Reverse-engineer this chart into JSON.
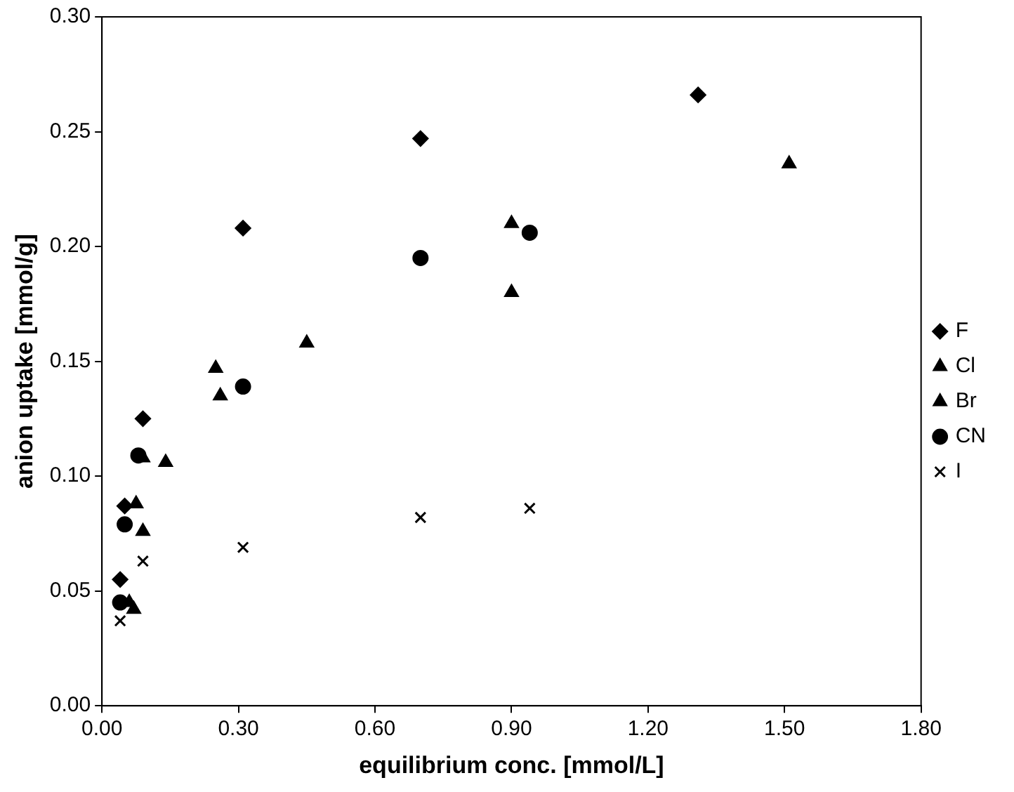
{
  "chart_data": {
    "type": "scatter",
    "xlabel": "equilibrium conc. [mmol/L]",
    "ylabel": "anion uptake [mmol/g]",
    "xlim": [
      0,
      1.8
    ],
    "xticks": [
      {
        "value": 0,
        "label": "0.00"
      },
      {
        "value": 0.3,
        "label": "0.30"
      },
      {
        "value": 0.6,
        "label": "0.60"
      },
      {
        "value": 0.9,
        "label": "0.90"
      },
      {
        "value": 1.2,
        "label": "1.20"
      },
      {
        "value": 1.5,
        "label": "1.50"
      },
      {
        "value": 1.8,
        "label": "1.80"
      }
    ],
    "ylim": [
      0,
      0.3
    ],
    "yticks": [
      {
        "value": 0,
        "label": "0.00"
      },
      {
        "value": 0.05,
        "label": "0.05"
      },
      {
        "value": 0.1,
        "label": "0.10"
      },
      {
        "value": 0.15,
        "label": "0.15"
      },
      {
        "value": 0.2,
        "label": "0.20"
      },
      {
        "value": 0.25,
        "label": "0.25"
      },
      {
        "value": 0.3,
        "label": "0.30"
      }
    ],
    "grid": false,
    "legend": "right",
    "series": [
      {
        "name": "F",
        "color": "#000000",
        "marker": "diamond",
        "x": [
          0.04,
          0.05,
          0.09,
          0.31,
          0.7,
          1.31
        ],
        "values": [
          0.055,
          0.087,
          0.125,
          0.208,
          0.247,
          0.266
        ]
      },
      {
        "name": "Cl",
        "color": "#000000",
        "marker": "triangle",
        "x": [
          0.06,
          0.075,
          0.09,
          0.25,
          0.9,
          1.51
        ],
        "values": [
          0.045,
          0.088,
          0.108,
          0.147,
          0.21,
          0.236
        ]
      },
      {
        "name": "Br",
        "color": "#000000",
        "marker": "triangle",
        "x": [
          0.07,
          0.09,
          0.14,
          0.26,
          0.45,
          0.9
        ],
        "values": [
          0.042,
          0.076,
          0.106,
          0.135,
          0.158,
          0.18
        ]
      },
      {
        "name": "CN",
        "color": "#000000",
        "marker": "circle",
        "x": [
          0.04,
          0.05,
          0.08,
          0.31,
          0.7,
          0.94
        ],
        "values": [
          0.045,
          0.079,
          0.109,
          0.139,
          0.195,
          0.206
        ]
      },
      {
        "name": "I",
        "color": "#000000",
        "marker": "cross",
        "x": [
          0.04,
          0.09,
          0.31,
          0.7,
          0.94
        ],
        "values": [
          0.037,
          0.063,
          0.069,
          0.082,
          0.086
        ]
      }
    ]
  }
}
